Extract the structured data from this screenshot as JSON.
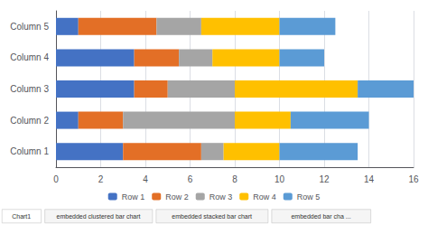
{
  "chart_data": {
    "type": "bar",
    "orientation": "horizontal",
    "stacked": true,
    "categories": [
      "Column 1",
      "Column 2",
      "Column 3",
      "Column 4",
      "Column 5"
    ],
    "series": [
      {
        "name": "Row 1",
        "color": "#4472C4",
        "values": [
          3.0,
          1.0,
          3.5,
          3.5,
          1.0
        ]
      },
      {
        "name": "Row 2",
        "color": "#E36F26",
        "values": [
          3.5,
          2.0,
          1.5,
          2.0,
          3.5
        ]
      },
      {
        "name": "Row 3",
        "color": "#A5A5A5",
        "values": [
          1.0,
          5.0,
          3.0,
          1.5,
          2.0
        ]
      },
      {
        "name": "Row 4",
        "color": "#FFC000",
        "values": [
          2.5,
          2.5,
          5.5,
          3.0,
          3.5
        ]
      },
      {
        "name": "Row 5",
        "color": "#5B9BD5",
        "values": [
          3.5,
          3.5,
          2.5,
          2.0,
          2.5
        ]
      }
    ],
    "xlim": [
      0,
      16
    ],
    "xticks": [
      0,
      2,
      4,
      6,
      8,
      10,
      12,
      14,
      16
    ],
    "grid": true,
    "legend": "bottom",
    "annotations": [
      "Chart1",
      "embedded clustered bar chart",
      "embedded stacked bar chart",
      "embedded bar cha ..."
    ]
  }
}
